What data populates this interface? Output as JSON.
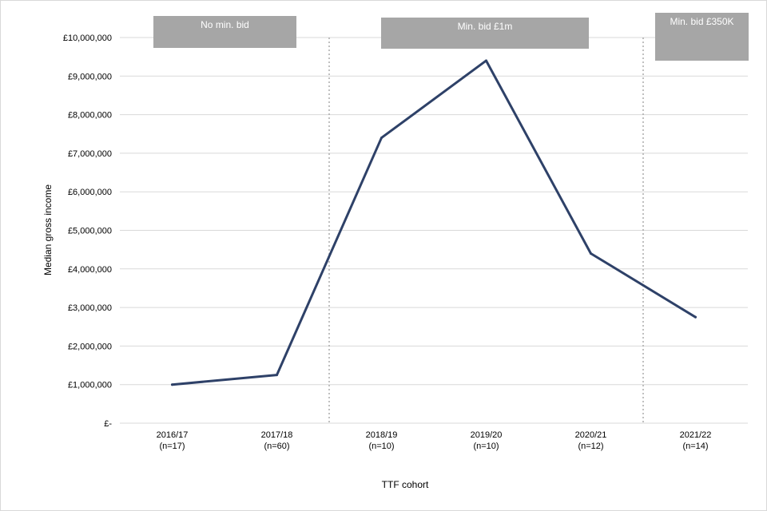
{
  "chart_data": {
    "type": "line",
    "title": "",
    "xlabel": "TTF  cohort",
    "ylabel": "Median gross income",
    "ylim": [
      0,
      10000000
    ],
    "y_ticks": [
      {
        "value": 0,
        "label": "£-"
      },
      {
        "value": 1000000,
        "label": "£1,000,000"
      },
      {
        "value": 2000000,
        "label": "£2,000,000"
      },
      {
        "value": 3000000,
        "label": "£3,000,000"
      },
      {
        "value": 4000000,
        "label": "£4,000,000"
      },
      {
        "value": 5000000,
        "label": "£5,000,000"
      },
      {
        "value": 6000000,
        "label": "£6,000,000"
      },
      {
        "value": 7000000,
        "label": "£7,000,000"
      },
      {
        "value": 8000000,
        "label": "£8,000,000"
      },
      {
        "value": 9000000,
        "label": "£9,000,000"
      },
      {
        "value": 10000000,
        "label": "£10,000,000"
      }
    ],
    "categories": [
      {
        "label": "2016/17",
        "n": "(n=17)"
      },
      {
        "label": "2017/18",
        "n": "(n=60)"
      },
      {
        "label": "2018/19",
        "n": "(n=10)"
      },
      {
        "label": "2019/20",
        "n": "(n=10)"
      },
      {
        "label": "2020/21",
        "n": "(n=12)"
      },
      {
        "label": "2021/22",
        "n": "(n=14)"
      }
    ],
    "series": [
      {
        "values": [
          1000000,
          1250000,
          7400000,
          9400000,
          4400000,
          2750000
        ],
        "color": "#2e4168"
      }
    ],
    "grid": true,
    "legend": "none",
    "dividers": [
      {
        "between": [
          1,
          2
        ],
        "style": "dotted"
      },
      {
        "between": [
          4,
          5
        ],
        "style": "dotted"
      }
    ],
    "bands": [
      {
        "label": "No min. bid",
        "covers": [
          0,
          1
        ]
      },
      {
        "label": "Min. bid £1m",
        "covers": [
          2,
          4
        ]
      },
      {
        "label": "Min. bid £350K",
        "covers": [
          5,
          5
        ]
      }
    ],
    "colors": {
      "line": "#2e4168",
      "band_fill": "#a6a6a6",
      "gridline": "#d9d9d9",
      "divider": "#a6a6a6"
    }
  }
}
